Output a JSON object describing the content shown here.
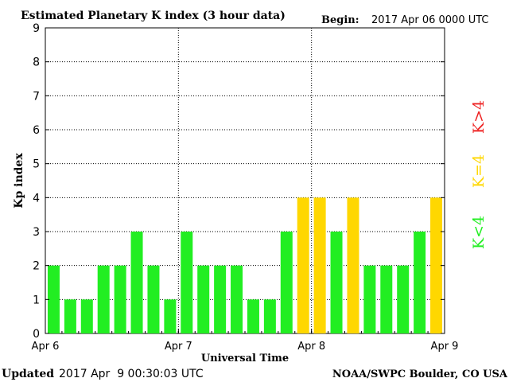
{
  "header": {
    "title": "Estimated Planetary K index (3 hour data)",
    "begin_label": "Begin:",
    "begin_value": "2017 Apr 06 0000 UTC"
  },
  "footer": {
    "updated_label": "Updated",
    "updated_value": "2017 Apr  9 00:30:03 UTC",
    "source": "NOAA/SWPC Boulder, CO USA"
  },
  "colors": {
    "below_4": "#22ee22",
    "equal_4": "#ffd700",
    "above_4": "#ee2222",
    "axis": "#000000",
    "grid": "#000000"
  },
  "legend": {
    "below": "K<4",
    "equal": "K=4",
    "above": "K>4"
  },
  "chart_data": {
    "type": "bar",
    "title": "Estimated Planetary K index (3 hour data)",
    "xlabel": "Universal Time",
    "ylabel": "Kp index",
    "ylim": [
      0,
      9
    ],
    "yticks": [
      "0",
      "1",
      "2",
      "3",
      "4",
      "5",
      "6",
      "7",
      "8",
      "9"
    ],
    "xticks": [
      "Apr 6",
      "Apr 7",
      "Apr 8",
      "Apr 9"
    ],
    "interval": "3 hour",
    "grid": true,
    "values": [
      2,
      1,
      1,
      2,
      2,
      3,
      2,
      1,
      3,
      2,
      2,
      2,
      1,
      1,
      3,
      4,
      4,
      3,
      4,
      2,
      2,
      2,
      3,
      4
    ]
  }
}
